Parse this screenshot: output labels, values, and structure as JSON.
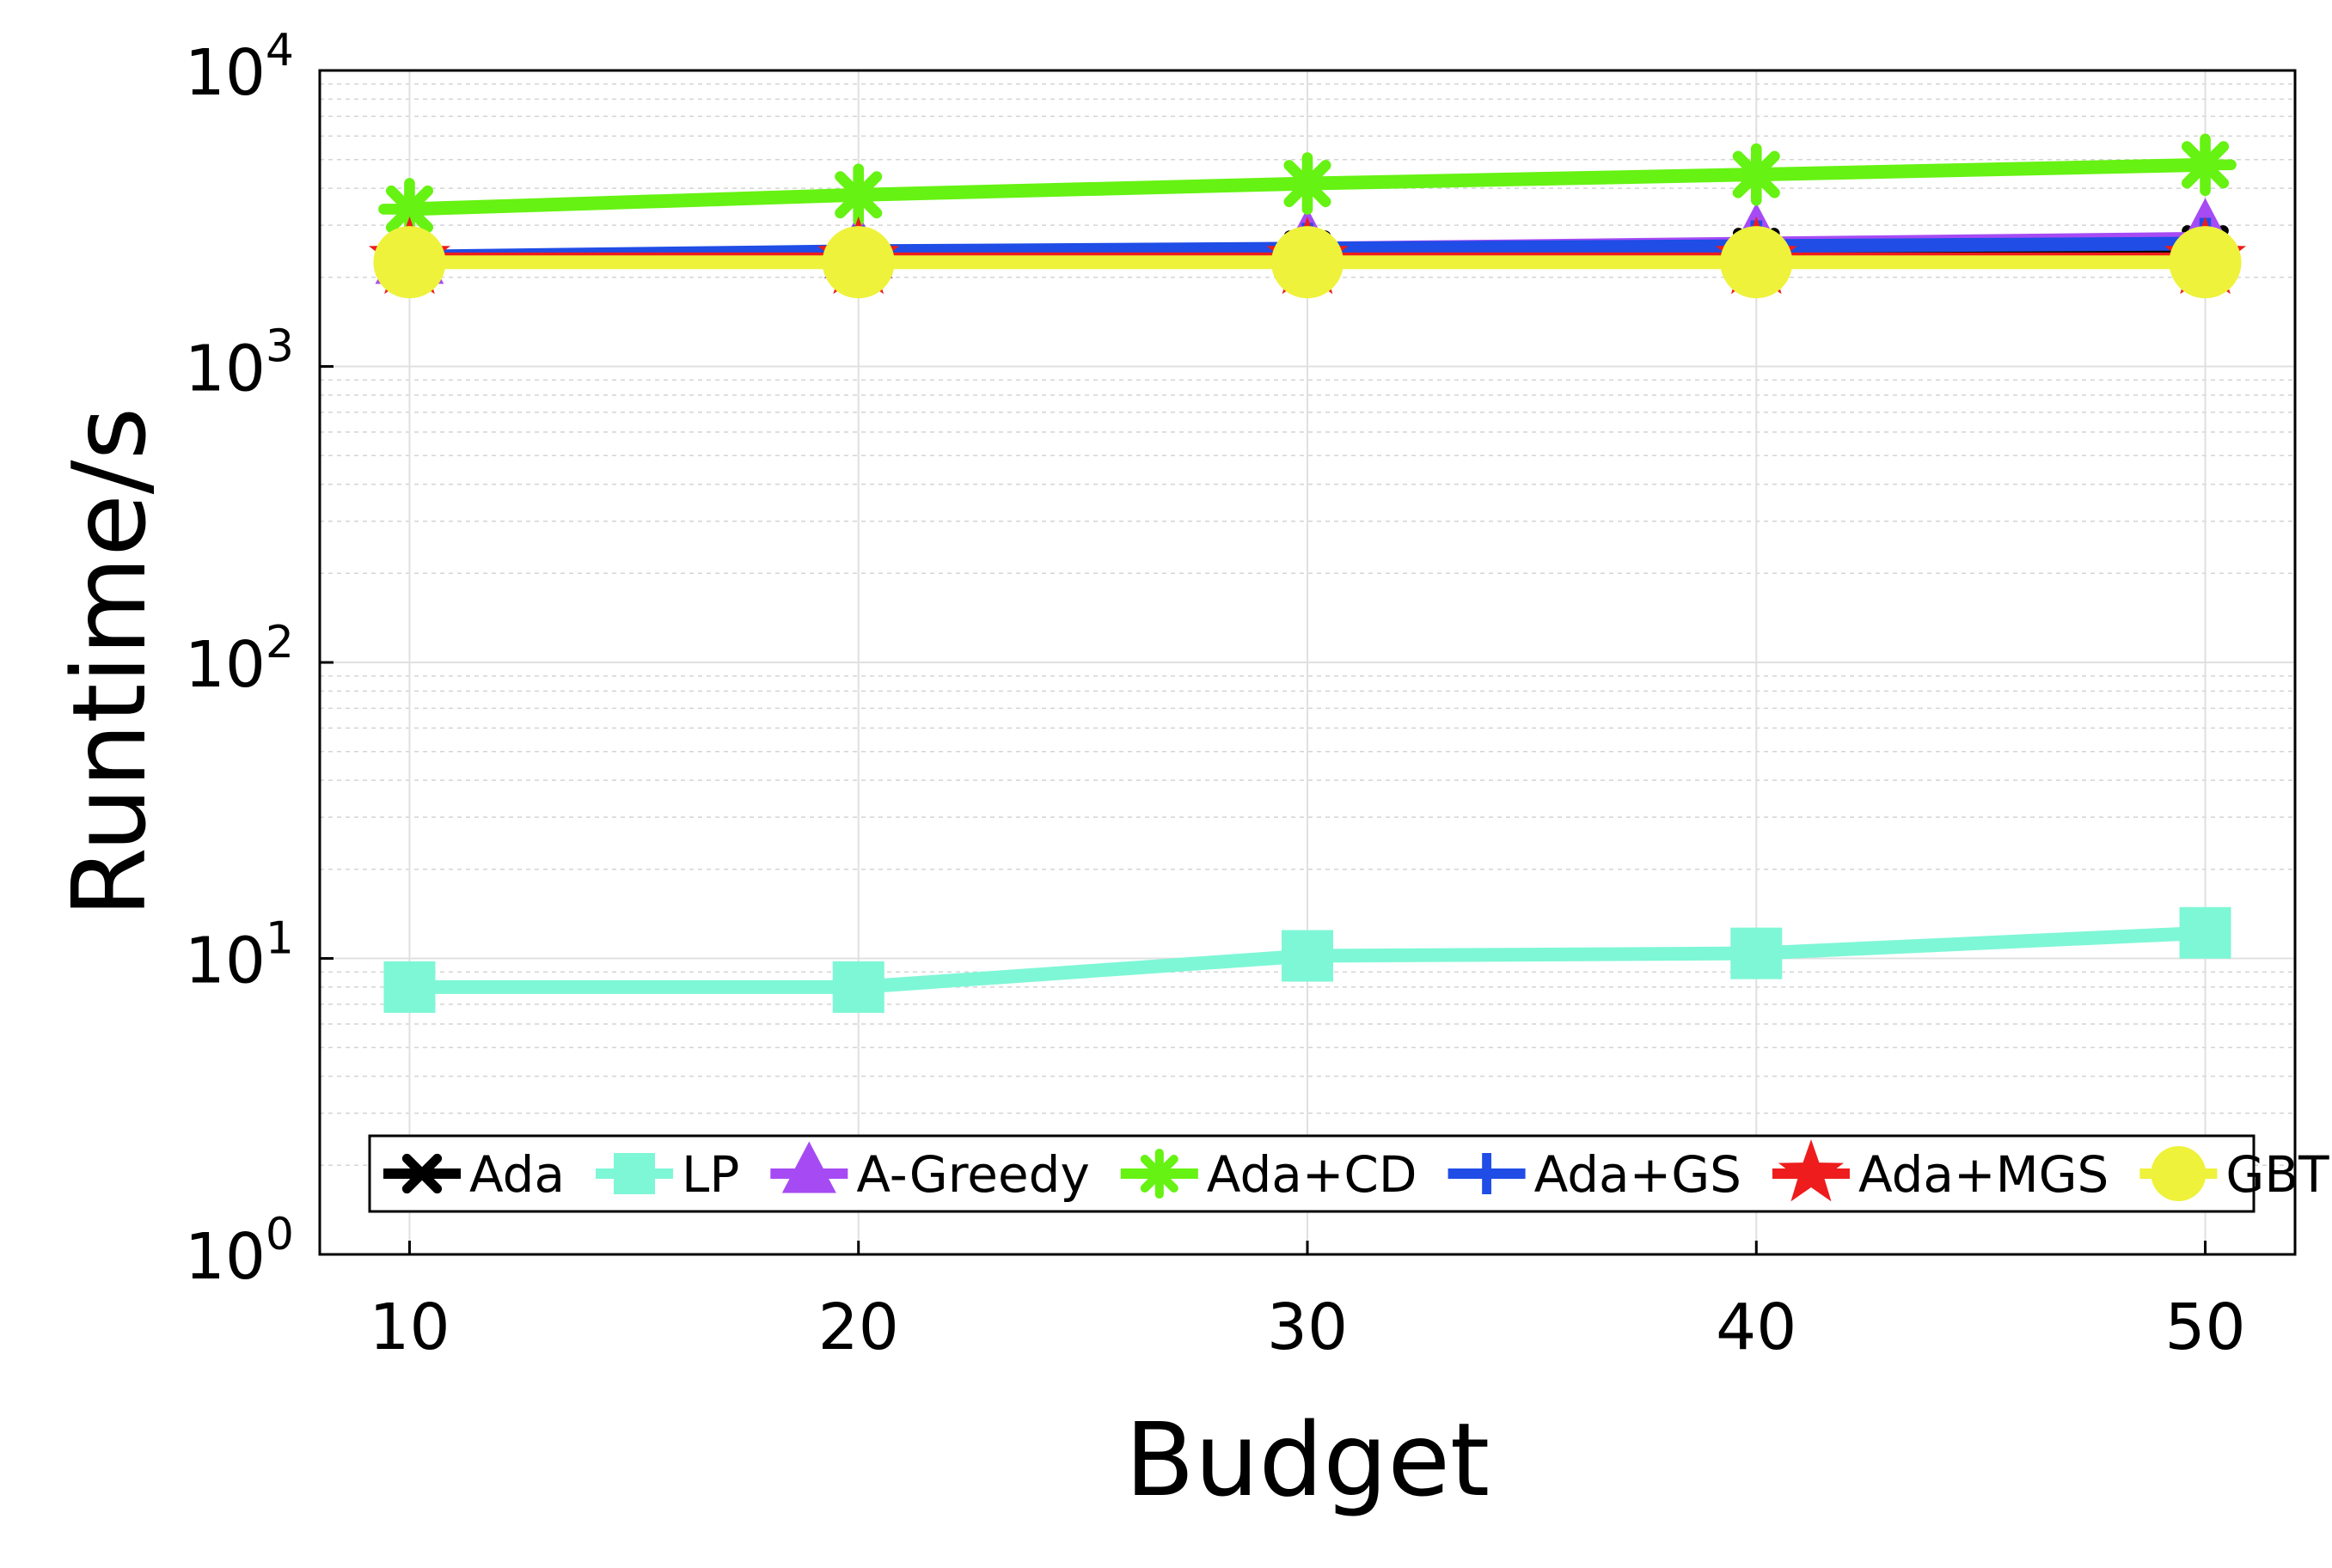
{
  "chart_data": {
    "type": "line",
    "title": "",
    "xlabel": "Budget",
    "ylabel": "Runtime/s",
    "x": [
      10,
      20,
      30,
      40,
      50
    ],
    "xlim": [
      8,
      52
    ],
    "ylim": [
      1,
      10000
    ],
    "yscale": "log",
    "xticks": [
      "10",
      "20",
      "30",
      "40",
      "50"
    ],
    "yticks": [
      {
        "base": "10",
        "exp": "0",
        "value": 1
      },
      {
        "base": "10",
        "exp": "1",
        "value": 10
      },
      {
        "base": "10",
        "exp": "2",
        "value": 100
      },
      {
        "base": "10",
        "exp": "3",
        "value": 1000
      },
      {
        "base": "10",
        "exp": "4",
        "value": 10000
      }
    ],
    "grid": true,
    "legend_position": "bottom",
    "series": [
      {
        "name": "Ada",
        "marker": "x",
        "color": "#000000",
        "values": [
          2300,
          2350,
          2400,
          2450,
          2500
        ]
      },
      {
        "name": "LP",
        "marker": "square",
        "color": "#7ef7d6",
        "values": [
          8,
          8,
          10.2,
          10.4,
          12.2
        ]
      },
      {
        "name": "A-Greedy",
        "marker": "triangle",
        "color": "#a64bf4",
        "values": [
          2300,
          2400,
          2500,
          2600,
          2700
        ]
      },
      {
        "name": "Ada+CD",
        "marker": "asterisk",
        "color": "#66f212",
        "values": [
          3400,
          3800,
          4150,
          4450,
          4800
        ]
      },
      {
        "name": "Ada+GS",
        "marker": "plus",
        "color": "#1f4de6",
        "values": [
          2350,
          2450,
          2500,
          2550,
          2600
        ]
      },
      {
        "name": "Ada+MGS",
        "marker": "star",
        "color": "#ee1c1c",
        "values": [
          2300,
          2300,
          2300,
          2300,
          2300
        ]
      },
      {
        "name": "GBT",
        "marker": "circle",
        "color": "#eef23a",
        "values": [
          2250,
          2250,
          2250,
          2250,
          2250
        ]
      }
    ]
  }
}
